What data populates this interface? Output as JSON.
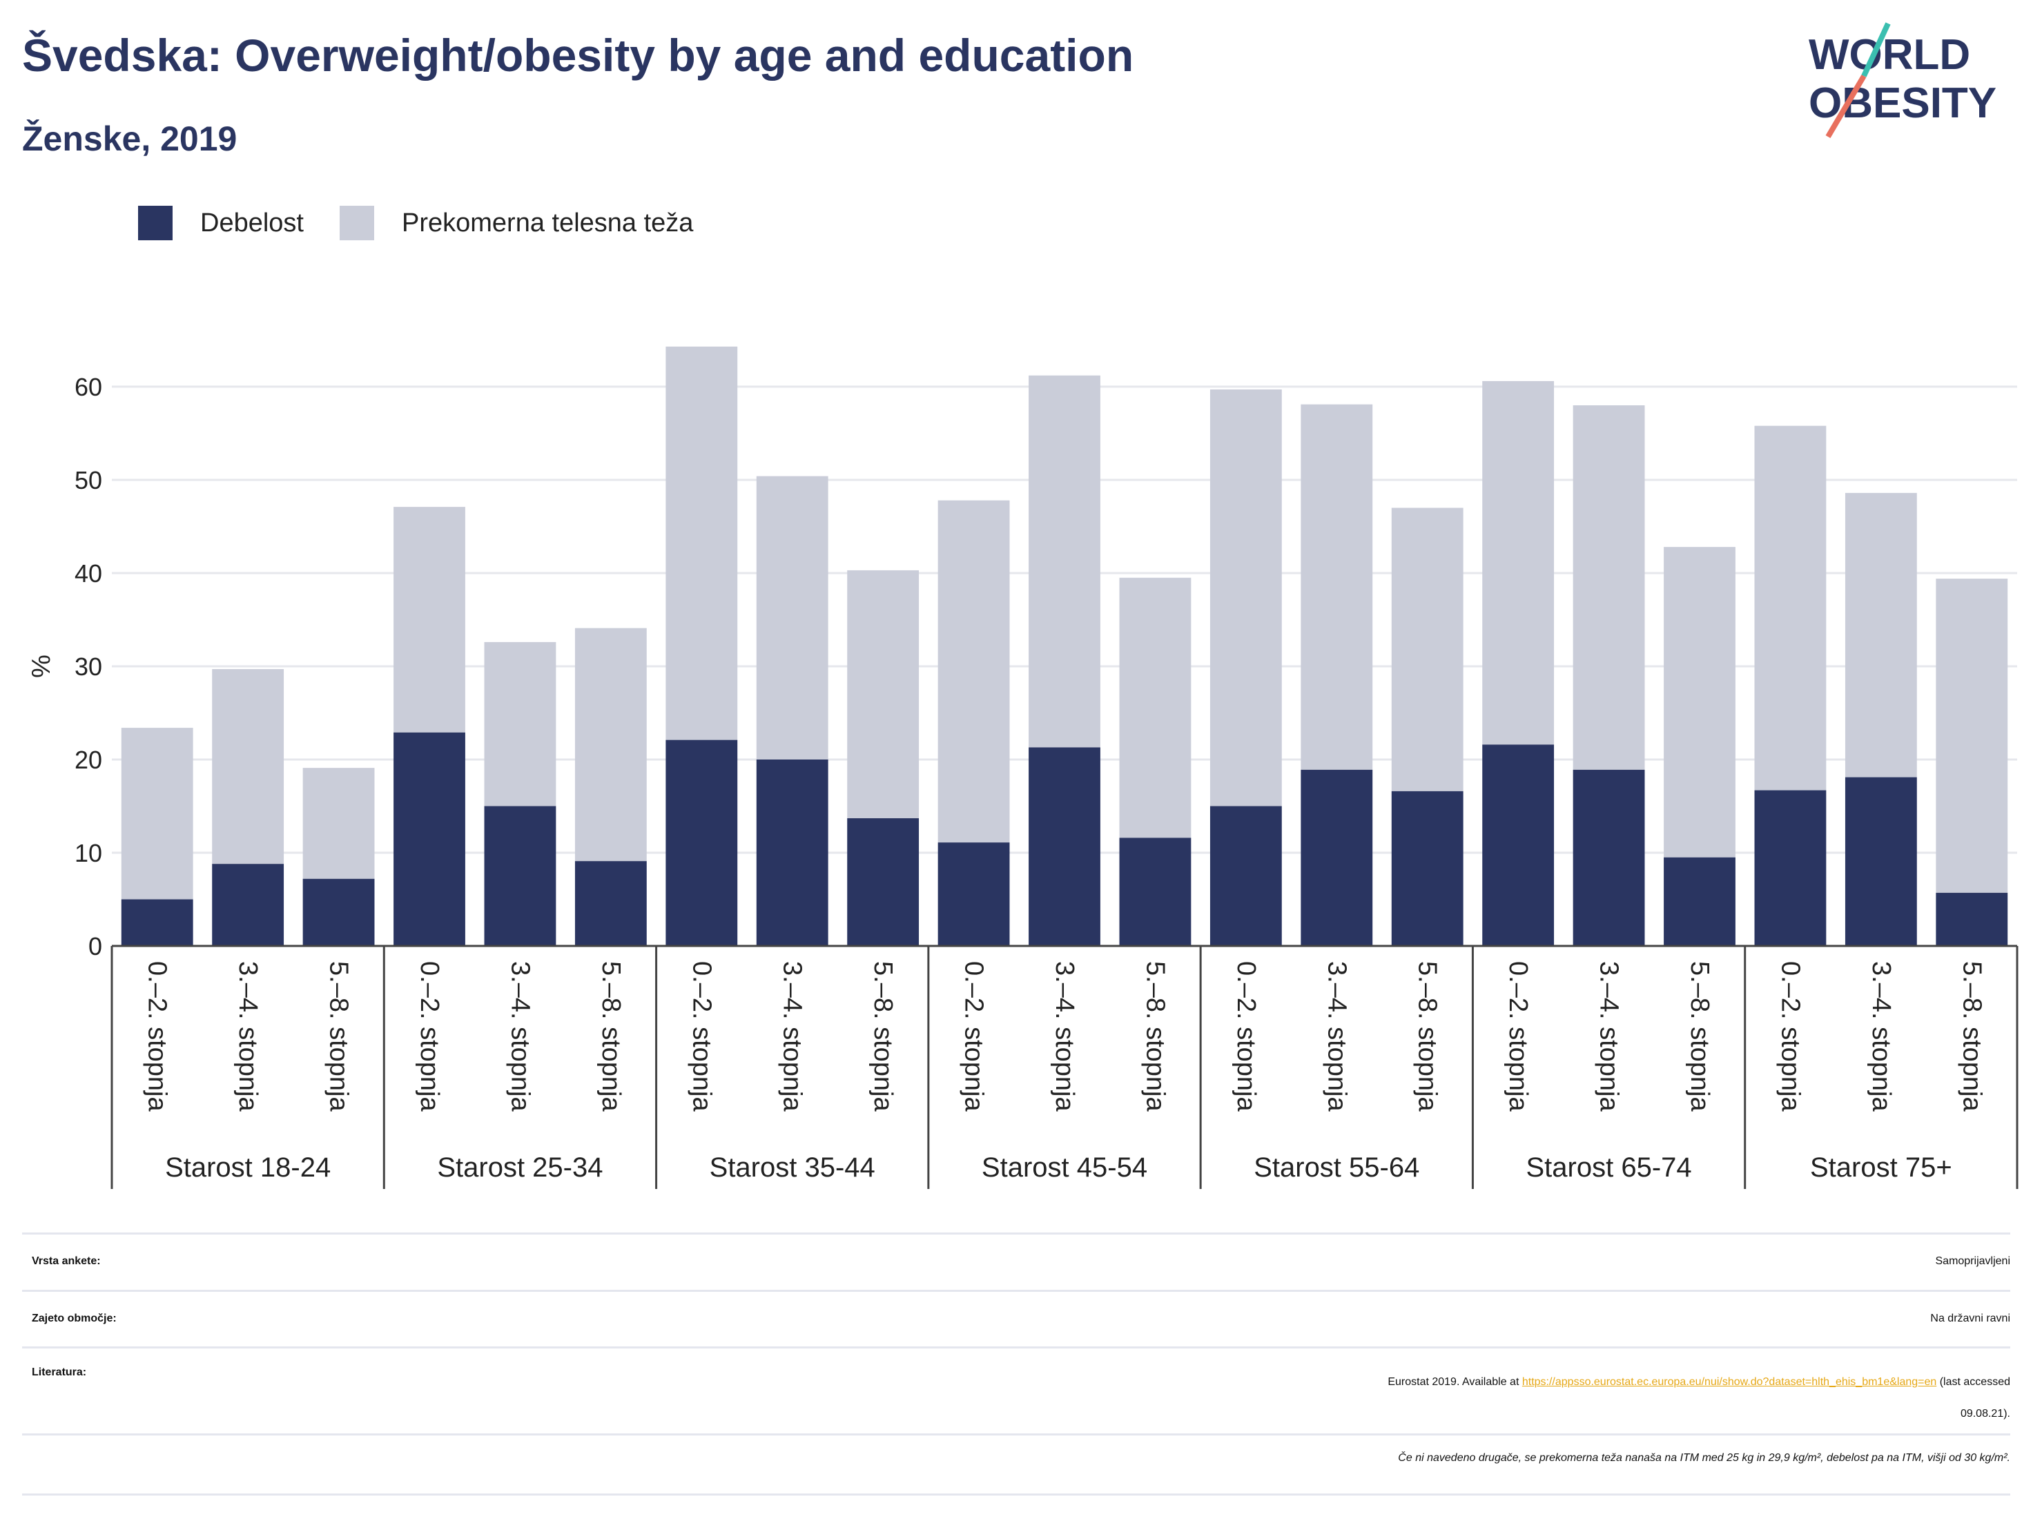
{
  "header": {
    "title": "Švedska: Overweight/obesity by age and education",
    "subtitle": "Ženske, 2019"
  },
  "logo": {
    "line1": "WORLD",
    "line2": "OBESITY"
  },
  "colors": {
    "obesity": "#2a3561",
    "overweight": "#cacdd9",
    "title": "#2a3561",
    "link": "#e6a817"
  },
  "legend": [
    {
      "label": "Debelost",
      "color": "#2a3561"
    },
    {
      "label": "Prekomerna telesna teža",
      "color": "#cacdd9"
    }
  ],
  "chart_data": {
    "type": "bar",
    "stacked": true,
    "ylabel": "%",
    "ylim": [
      0,
      66
    ],
    "yticks": [
      0,
      10,
      20,
      30,
      40,
      50,
      60
    ],
    "grid": true,
    "legend_position": "top-left",
    "groups": [
      "Starost 18-24",
      "Starost 25-34",
      "Starost 35-44",
      "Starost 45-54",
      "Starost 55-64",
      "Starost 65-74",
      "Starost 75+"
    ],
    "sub_categories": [
      "0.–2. stopnja",
      "3.–4. stopnja",
      "5.–8. stopnja"
    ],
    "series": [
      {
        "name": "Debelost",
        "values": [
          5.0,
          8.8,
          7.2,
          22.9,
          15.0,
          9.1,
          22.1,
          20.0,
          13.7,
          11.1,
          21.3,
          11.6,
          15.0,
          18.9,
          16.6,
          21.6,
          18.9,
          9.5,
          16.7,
          18.1,
          5.7
        ]
      },
      {
        "name": "Prekomerna telesna teža",
        "values": [
          18.4,
          20.9,
          11.9,
          24.2,
          17.6,
          25.0,
          42.2,
          30.4,
          26.6,
          36.7,
          39.9,
          27.9,
          44.7,
          39.2,
          30.4,
          39.0,
          39.1,
          33.3,
          39.1,
          30.5,
          33.7
        ]
      }
    ]
  },
  "meta": {
    "survey_key": "Vrsta ankete:",
    "survey_val": "Samoprijavljeni",
    "coverage_key": "Zajeto območje:",
    "coverage_val": "Na državni ravni",
    "lit_key": "Literatura:",
    "lit_prefix": "Eurostat 2019. Available at ",
    "lit_link": "https://appsso.eurostat.ec.europa.eu/nui/show.do?dataset=hlth_ehis_bm1e&lang=en",
    "lit_suffix": " (last accessed",
    "lit_suffix2": "09.08.21).",
    "note": "Če ni navedeno drugače, se prekomerna teža nanaša na ITM med 25 kg in 29,9 kg/m², debelost pa na ITM, višji od 30 kg/m²."
  }
}
